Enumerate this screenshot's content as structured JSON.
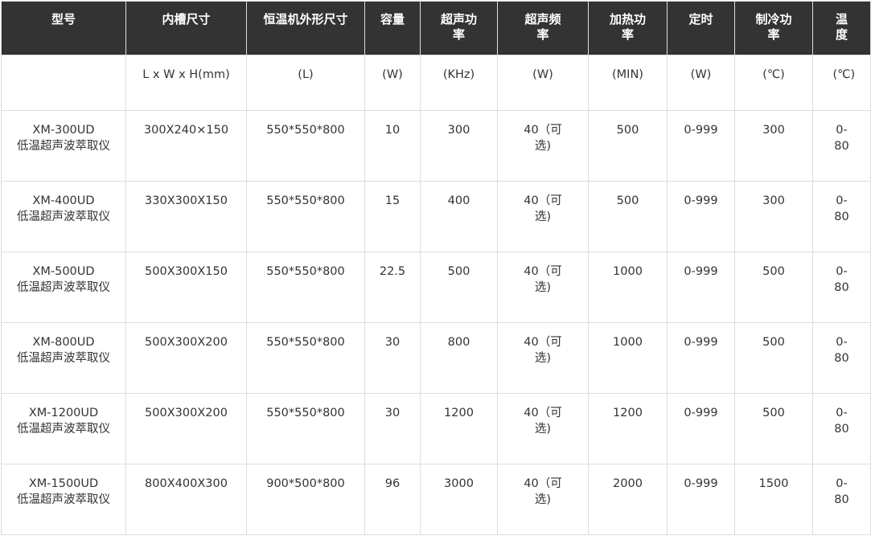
{
  "headers": [
    "型号",
    "内槽尺寸",
    "恒温机外形尺寸",
    "容量",
    "超声功率",
    "超声频率",
    "加热功率",
    "定时",
    "制冷功率",
    "温度"
  ],
  "units": [
    "",
    "L x W x H(mm)",
    "(L)",
    "(W)",
    "(KHz)",
    "(W)",
    "(MIN)",
    "(W)",
    "(℃)",
    "(℃)"
  ],
  "rows": [
    {
      "model": "XM-300UD",
      "name": "低温超声波萃取仪",
      "cells": [
        "300X240×150",
        "550*550*800",
        "10",
        "300",
        "40（可选)",
        "500",
        "0-999",
        "300",
        "0-80"
      ]
    },
    {
      "model": "XM-400UD",
      "name": "低温超声波萃取仪",
      "cells": [
        "330X300X150",
        "550*550*800",
        "15",
        "400",
        "40（可选)",
        "500",
        "0-999",
        "300",
        "0-80"
      ]
    },
    {
      "model": "XM-500UD",
      "name": "低温超声波萃取仪",
      "cells": [
        "500X300X150",
        "550*550*800",
        "22.5",
        "500",
        "40（可选)",
        "1000",
        "0-999",
        "500",
        "0-80"
      ]
    },
    {
      "model": "XM-800UD",
      "name": "低温超声波萃取仪",
      "cells": [
        "500X300X200",
        "550*550*800",
        "30",
        "800",
        "40（可选)",
        "1000",
        "0-999",
        "500",
        "0-80"
      ]
    },
    {
      "model": "XM-1200UD",
      "name": "低温超声波萃取仪",
      "cells": [
        "500X300X200",
        "550*550*800",
        "30",
        "1200",
        "40（可选)",
        "1200",
        "0-999",
        "500",
        "0-80"
      ]
    },
    {
      "model": "XM-1500UD",
      "name": "低温超声波萃取仪",
      "cells": [
        "800X400X300",
        "900*500*800",
        "96",
        "3000",
        "40（可选)",
        "2000",
        "0-999",
        "1500",
        "0-80"
      ]
    }
  ]
}
